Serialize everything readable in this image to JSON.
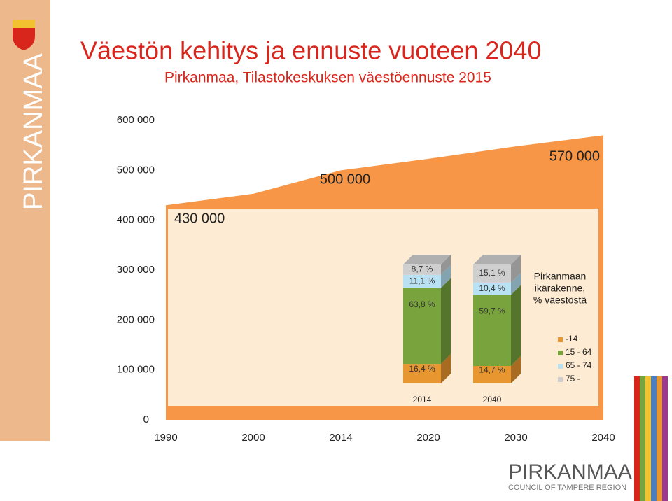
{
  "branding": {
    "banner": "PIRKANMAA",
    "logo": "PIRKANMAA",
    "logo_sub": "COUNCIL OF TAMPERE REGION"
  },
  "chart_data": [
    {
      "type": "area",
      "title": "Väestön kehitys ja ennuste vuoteen 2040",
      "subtitle": "Pirkanmaa, Tilastokeskuksen väestöennuste 2015",
      "categories": [
        "1990",
        "2000",
        "2014",
        "2020",
        "2030",
        "2040"
      ],
      "values": [
        430000,
        453000,
        500000,
        523000,
        548000,
        570000
      ],
      "value_labels": [
        "430 000",
        null,
        "500 000",
        null,
        null,
        "570 000"
      ],
      "color": "#f79646",
      "ylim": [
        0,
        600000
      ],
      "yticks": [
        0,
        {
          "value": 100000,
          "label": "100 000"
        },
        {
          "value": 200000,
          "label": "200 000"
        },
        {
          "value": 300000,
          "label": "300 000"
        },
        {
          "value": 400000,
          "label": "400 000"
        },
        {
          "value": 500000,
          "label": "500 000"
        },
        {
          "value": 600000,
          "label": "600 000"
        }
      ]
    },
    {
      "type": "stacked-bar",
      "title": [
        "Pirkanmaan",
        "ikärakenne,",
        "% väestöstä"
      ],
      "categories": [
        "2014",
        "2040"
      ],
      "series": [
        {
          "name": "-14",
          "color": "#e8962f",
          "values": [
            16.4,
            14.7
          ],
          "value_labels": [
            "16,4 %",
            "14,7 %"
          ]
        },
        {
          "name": "15 - 64",
          "color": "#78a33d",
          "values": [
            63.8,
            59.7
          ],
          "value_labels": [
            "63,8 %",
            "59,7 %"
          ]
        },
        {
          "name": "65 - 74",
          "color": "#b8e2f4",
          "values": [
            11.1,
            10.4
          ],
          "value_labels": [
            "11,1 %",
            "10,4 %"
          ]
        },
        {
          "name": "75 -",
          "color": "#cfcfcf",
          "values": [
            8.7,
            15.1
          ],
          "value_labels": [
            "8,7 %",
            "15,1 %"
          ]
        }
      ]
    }
  ]
}
